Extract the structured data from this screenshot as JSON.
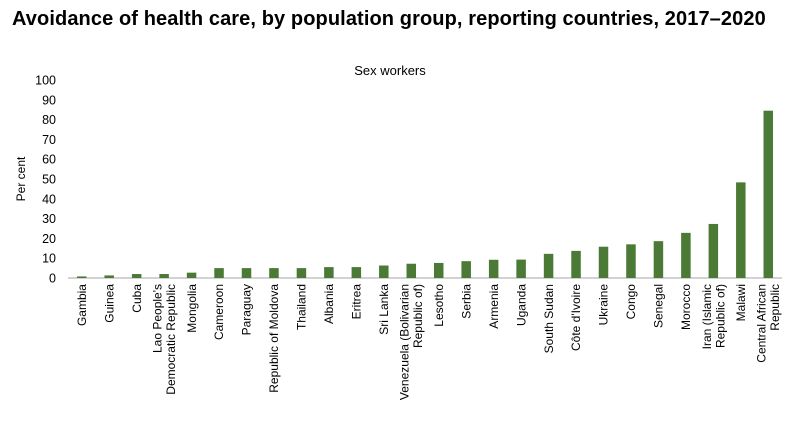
{
  "title": "Avoidance of health care, by population group, reporting countries, 2017–2020",
  "chart_data": {
    "type": "bar",
    "subtitle": "Sex workers",
    "xlabel": "",
    "ylabel": "Per cent",
    "ylim": [
      0,
      100
    ],
    "yticks": [
      0,
      10,
      20,
      30,
      40,
      50,
      60,
      70,
      80,
      90,
      100
    ],
    "grid": false,
    "legend": "none",
    "bar_color": "#4a7a36",
    "categories": [
      "Gambia",
      "Guinea",
      "Cuba",
      "Lao People's\nDemocratic Republic",
      "Mongolia",
      "Cameroon",
      "Paraguay",
      "Republic of Moldova",
      "Thailand",
      "Albania",
      "Eritrea",
      "Sri Lanka",
      "Venezuela (Bolivarian\nRepublic of)",
      "Lesotho",
      "Serbia",
      "Armenia",
      "Uganda",
      "South Sudan",
      "Côte d'Ivoire",
      "Ukraine",
      "Congo",
      "Senegal",
      "Morocco",
      "Iran (Islamic\nRepublic of)",
      "Malawi",
      "Central African\nRepublic"
    ],
    "values": [
      0.8,
      1.3,
      2.0,
      2.0,
      2.7,
      5.0,
      5.0,
      5.0,
      5.0,
      5.5,
      5.5,
      6.3,
      7.2,
      7.6,
      8.5,
      9.2,
      9.3,
      12.2,
      13.7,
      15.8,
      17.0,
      18.6,
      22.8,
      27.3,
      48.3,
      84.5
    ]
  }
}
